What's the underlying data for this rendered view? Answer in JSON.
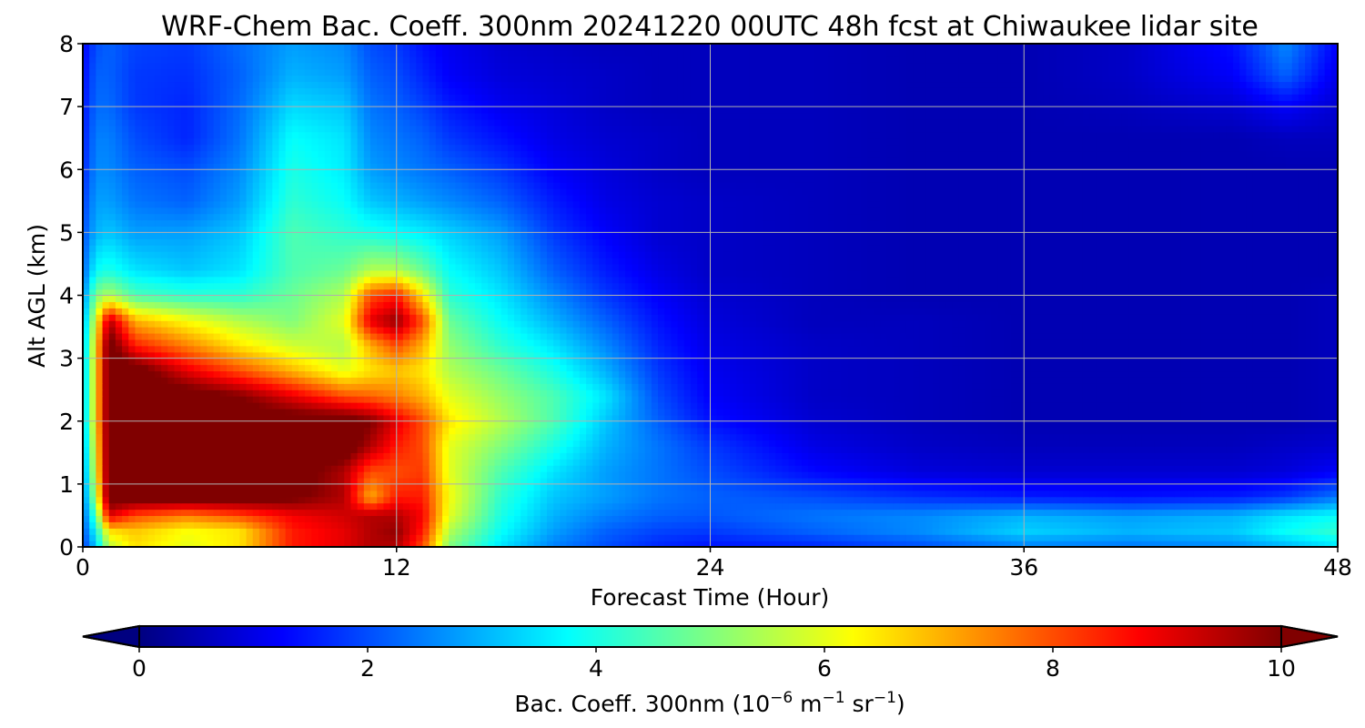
{
  "chart_data": {
    "type": "heatmap",
    "title": "WRF-Chem Bac. Coeff. 300nm  20241220 00UTC 48h fcst at Chiwaukee lidar site",
    "xlabel": "Forecast Time (Hour)",
    "ylabel": "Alt AGL (km)",
    "xlim": [
      0,
      48
    ],
    "ylim": [
      0,
      8
    ],
    "xticks": [
      "0",
      "12",
      "24",
      "36",
      "48"
    ],
    "yticks": [
      "0",
      "1",
      "2",
      "3",
      "4",
      "5",
      "6",
      "7",
      "8"
    ],
    "grid": true,
    "colormap": "jet",
    "colorbar": {
      "label": "Bac. Coeff. 300nm  (10",
      "label_exp1": "−6",
      "label_unit1": " m",
      "label_exp2": "−1",
      "label_unit2": " sr",
      "label_exp3": "−1",
      "label_end": ")",
      "range": [
        0,
        10
      ],
      "ticks": [
        "0",
        "2",
        "4",
        "6",
        "8",
        "10"
      ],
      "extend": "both"
    },
    "x_hours": [
      0,
      0.5,
      1,
      2,
      4,
      6,
      8,
      10,
      11,
      12,
      13,
      14,
      16,
      18,
      20,
      22,
      24,
      28,
      32,
      36,
      40,
      44,
      46,
      48
    ],
    "z_km": [
      0,
      0.25,
      0.5,
      0.8,
      1.2,
      1.6,
      2.0,
      2.4,
      2.8,
      3.2,
      3.6,
      4.0,
      4.4,
      5.0,
      5.5,
      6.0,
      6.5,
      7.0,
      7.5,
      8.0
    ],
    "values": [
      [
        1.8,
        3.2,
        5.5,
        6.5,
        6.0,
        6.5,
        8.5,
        9.0,
        9.5,
        9.5,
        8.0,
        5.0,
        3.5,
        2.5,
        2.0,
        1.6,
        1.4,
        1.6,
        2.0,
        2.5,
        2.4,
        2.6,
        3.0,
        3.5
      ],
      [
        2.0,
        3.8,
        6.5,
        6.8,
        6.2,
        6.5,
        8.5,
        9.0,
        9.5,
        9.8,
        8.5,
        5.5,
        3.8,
        2.8,
        2.2,
        1.9,
        1.8,
        2.2,
        2.6,
        3.3,
        3.0,
        3.2,
        3.8,
        4.2
      ],
      [
        2.2,
        4.5,
        9.0,
        8.0,
        7.5,
        8.0,
        8.8,
        9.2,
        9.5,
        9.5,
        8.8,
        6.0,
        4.0,
        3.0,
        2.5,
        2.2,
        2.1,
        2.4,
        2.6,
        3.0,
        2.8,
        3.0,
        3.5,
        3.8
      ],
      [
        2.4,
        5.5,
        10.5,
        10.5,
        10.5,
        10.5,
        10.2,
        9.5,
        7.0,
        8.5,
        8.5,
        6.2,
        4.2,
        3.2,
        2.8,
        2.4,
        2.2,
        2.0,
        1.7,
        1.5,
        1.4,
        1.5,
        1.8,
        2.4
      ],
      [
        2.6,
        6.0,
        10.5,
        10.5,
        10.5,
        10.5,
        10.5,
        9.5,
        8.0,
        8.0,
        8.2,
        6.0,
        4.5,
        3.5,
        2.8,
        2.4,
        2.0,
        1.3,
        0.9,
        0.8,
        0.8,
        0.8,
        0.9,
        1.2
      ],
      [
        2.8,
        6.2,
        10.5,
        10.5,
        10.5,
        10.5,
        10.5,
        10.5,
        9.5,
        8.5,
        8.0,
        6.0,
        5.0,
        4.0,
        3.0,
        2.4,
        1.8,
        1.0,
        0.7,
        0.6,
        0.6,
        0.6,
        0.7,
        0.8
      ],
      [
        3.0,
        6.5,
        10.5,
        10.5,
        10.5,
        10.5,
        10.5,
        10.5,
        10.0,
        9.0,
        8.0,
        6.5,
        5.5,
        4.5,
        3.2,
        2.2,
        1.4,
        0.8,
        0.6,
        0.5,
        0.5,
        0.5,
        0.5,
        0.6
      ],
      [
        3.0,
        6.5,
        10.5,
        10.5,
        10.5,
        10.0,
        9.0,
        8.0,
        7.8,
        7.5,
        7.0,
        6.0,
        5.2,
        4.5,
        3.5,
        2.0,
        1.2,
        0.7,
        0.6,
        0.5,
        0.5,
        0.5,
        0.5,
        0.6
      ],
      [
        3.0,
        6.5,
        10.5,
        10.5,
        9.0,
        8.0,
        7.0,
        6.0,
        6.5,
        6.8,
        6.5,
        5.5,
        4.8,
        4.0,
        3.0,
        1.8,
        1.1,
        0.7,
        0.6,
        0.5,
        0.5,
        0.5,
        0.5,
        0.6
      ],
      [
        3.0,
        6.5,
        10.5,
        8.5,
        7.5,
        6.5,
        5.8,
        5.5,
        7.0,
        8.0,
        7.0,
        5.2,
        4.2,
        3.5,
        2.6,
        1.6,
        1.0,
        0.7,
        0.6,
        0.5,
        0.5,
        0.5,
        0.5,
        0.6
      ],
      [
        2.8,
        6.0,
        9.5,
        7.0,
        6.2,
        5.5,
        5.0,
        6.0,
        9.0,
        9.8,
        8.0,
        4.8,
        3.8,
        3.0,
        2.2,
        1.4,
        0.9,
        0.6,
        0.6,
        0.5,
        0.5,
        0.5,
        0.5,
        0.6
      ],
      [
        2.5,
        5.0,
        5.5,
        4.5,
        4.2,
        4.2,
        4.8,
        5.5,
        8.0,
        8.5,
        6.5,
        4.2,
        3.5,
        2.6,
        1.8,
        1.2,
        0.8,
        0.6,
        0.5,
        0.5,
        0.5,
        0.5,
        0.5,
        0.6
      ],
      [
        2.2,
        3.8,
        4.0,
        3.5,
        3.2,
        3.5,
        4.5,
        4.8,
        5.5,
        5.5,
        4.8,
        3.8,
        3.2,
        2.2,
        1.5,
        1.0,
        0.7,
        0.6,
        0.5,
        0.5,
        0.5,
        0.5,
        0.5,
        0.5
      ],
      [
        2.0,
        3.0,
        3.2,
        2.8,
        2.8,
        3.2,
        4.5,
        4.2,
        4.0,
        3.8,
        3.6,
        3.3,
        2.8,
        1.8,
        1.2,
        0.8,
        0.7,
        0.6,
        0.5,
        0.5,
        0.5,
        0.5,
        0.5,
        0.5
      ],
      [
        1.8,
        2.8,
        2.8,
        2.4,
        2.2,
        2.8,
        4.2,
        3.8,
        3.2,
        3.0,
        2.8,
        2.6,
        2.2,
        1.5,
        1.0,
        0.8,
        0.7,
        0.6,
        0.5,
        0.5,
        0.5,
        0.5,
        0.5,
        0.5
      ],
      [
        1.6,
        2.6,
        2.6,
        2.2,
        2.0,
        2.6,
        4.0,
        3.6,
        2.8,
        2.6,
        2.4,
        2.2,
        1.8,
        1.2,
        0.9,
        0.7,
        0.6,
        0.6,
        0.5,
        0.5,
        0.5,
        0.5,
        0.5,
        0.5
      ],
      [
        1.5,
        2.5,
        2.5,
        2.0,
        1.6,
        2.4,
        3.8,
        3.5,
        2.6,
        2.4,
        2.2,
        1.8,
        1.4,
        1.0,
        0.8,
        0.7,
        0.6,
        0.6,
        0.5,
        0.5,
        0.5,
        0.5,
        0.6,
        0.6
      ],
      [
        1.4,
        2.3,
        2.3,
        1.8,
        1.6,
        2.3,
        3.4,
        3.2,
        2.4,
        2.2,
        1.9,
        1.5,
        1.1,
        0.9,
        0.7,
        0.6,
        0.6,
        0.6,
        0.5,
        0.5,
        0.6,
        0.8,
        1.2,
        0.8
      ],
      [
        1.3,
        2.2,
        2.2,
        1.8,
        1.7,
        2.2,
        3.0,
        2.8,
        2.2,
        2.0,
        1.6,
        1.2,
        0.9,
        0.8,
        0.7,
        0.6,
        0.6,
        0.6,
        0.5,
        0.5,
        0.7,
        1.2,
        2.2,
        1.0
      ],
      [
        1.2,
        2.0,
        2.2,
        1.9,
        1.8,
        2.3,
        2.8,
        2.6,
        2.0,
        1.8,
        1.4,
        1.1,
        0.8,
        0.7,
        0.6,
        0.6,
        0.6,
        0.6,
        0.5,
        0.5,
        0.7,
        1.4,
        2.6,
        1.2
      ]
    ]
  }
}
